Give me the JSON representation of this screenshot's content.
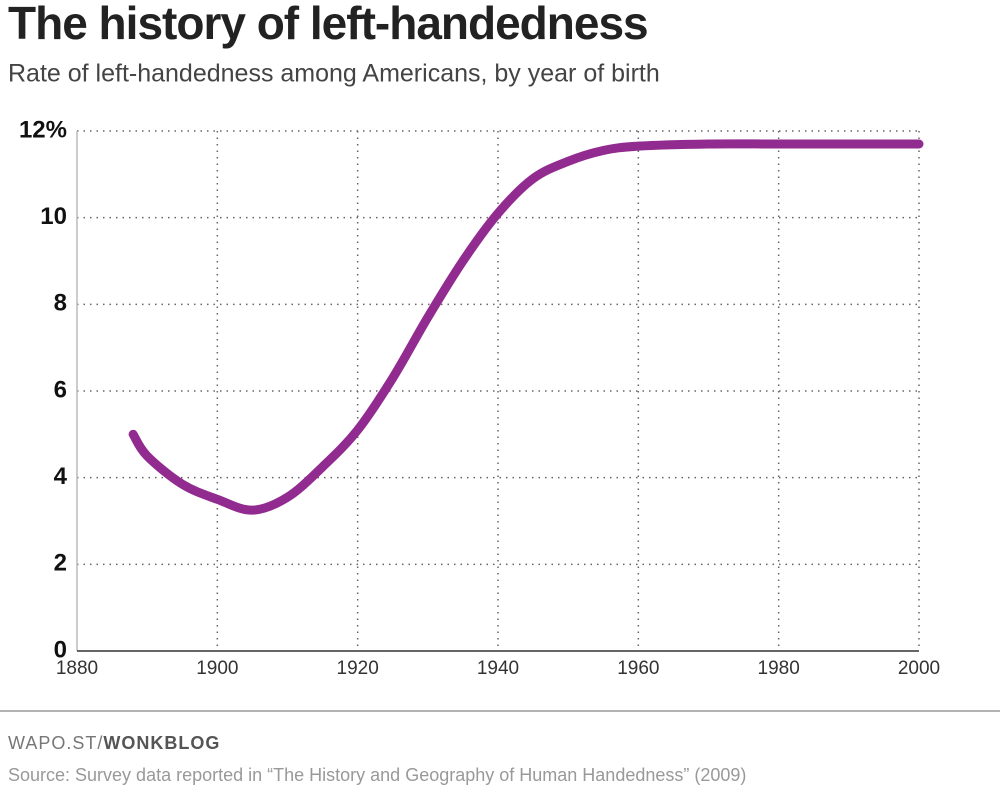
{
  "chart_data": {
    "type": "line",
    "title": "The history of left-handedness",
    "subtitle": "Rate of left-handedness among Americans, by year of birth",
    "x": [
      1888,
      1890,
      1895,
      1900,
      1905,
      1910,
      1915,
      1920,
      1925,
      1930,
      1935,
      1940,
      1945,
      1950,
      1955,
      1960,
      1970,
      1980,
      1990,
      2000
    ],
    "series": [
      {
        "name": "Left-handed rate",
        "color": "#922b8f",
        "values": [
          5.0,
          4.5,
          3.85,
          3.5,
          3.25,
          3.55,
          4.25,
          5.1,
          6.3,
          7.7,
          9.0,
          10.1,
          10.9,
          11.3,
          11.55,
          11.65,
          11.7,
          11.7,
          11.7,
          11.7
        ]
      }
    ],
    "xlim": [
      1880,
      2000
    ],
    "xticks": [
      1880,
      1900,
      1920,
      1940,
      1960,
      1980,
      2000
    ],
    "ylim": [
      0,
      12
    ],
    "yticks": [
      0,
      2,
      4,
      6,
      8,
      10,
      {
        "value": 12,
        "label": "12%"
      }
    ],
    "grid": true
  },
  "footer": {
    "brand_prefix": "WAPO.ST/",
    "brand_name": "WONKBLOG",
    "source": "Source: Survey data reported in “The History and Geography of Human Handedness” (2009)"
  }
}
